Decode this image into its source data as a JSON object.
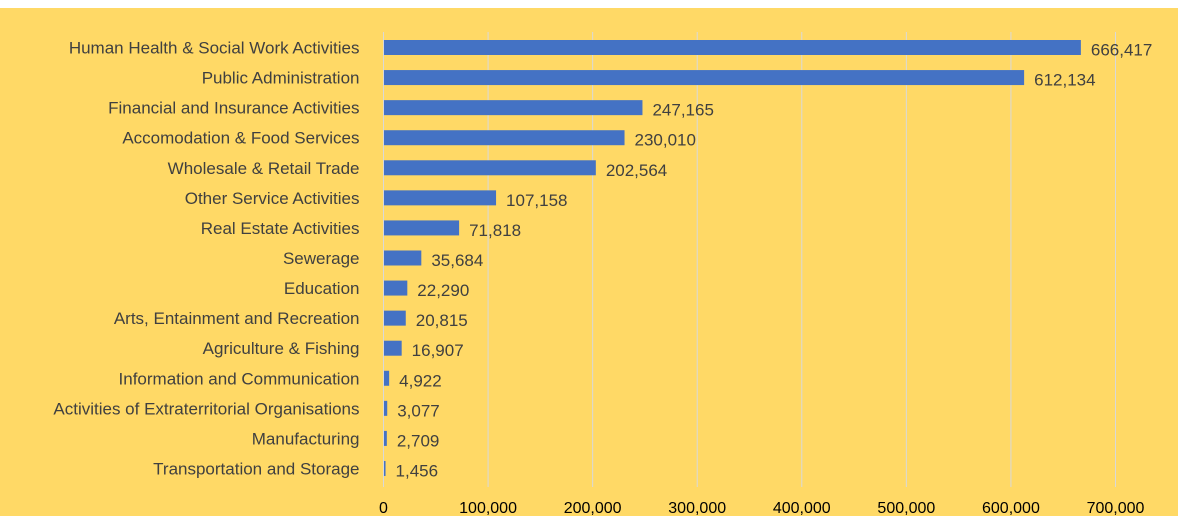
{
  "chart_data": {
    "type": "bar",
    "orientation": "horizontal",
    "categories": [
      "Human Health & Social Work Activities",
      "Public Administration",
      "Financial and Insurance Activities",
      "Accomodation & Food Services",
      "Wholesale & Retail Trade",
      "Other Service Activities",
      "Real Estate Activities",
      "Sewerage",
      "Education",
      "Arts, Entainment and Recreation",
      "Agriculture & Fishing",
      "Information and Communication",
      "Activities of Extraterritorial Organisations",
      "Manufacturing",
      "Transportation and Storage"
    ],
    "values": [
      666417,
      612134,
      247165,
      230010,
      202564,
      107158,
      71818,
      35684,
      22290,
      20815,
      16907,
      4922,
      3077,
      2709,
      1456
    ],
    "data_labels": [
      "666,417",
      "612,134",
      "247,165",
      "230,010",
      "202,564",
      "107,158",
      "71,818",
      "35,684",
      "22,290",
      "20,815",
      "16,907",
      "4,922",
      "3,077",
      "2,709",
      "1,456"
    ],
    "xlim": [
      0,
      700000
    ],
    "xticks": [
      0,
      100000,
      200000,
      300000,
      400000,
      500000,
      600000,
      700000
    ],
    "xtick_labels": [
      "0",
      "100,000",
      "200,000",
      "300,000",
      "400,000",
      "500,000",
      "600,000",
      "700,000"
    ],
    "title": "",
    "xlabel": "",
    "ylabel": "",
    "grid": "vertical",
    "legend": "none",
    "colors": {
      "bar": "#4472C4",
      "plot_background": "#FFD966",
      "gridline": "#D9D9D9",
      "label_text": "#404040"
    }
  }
}
